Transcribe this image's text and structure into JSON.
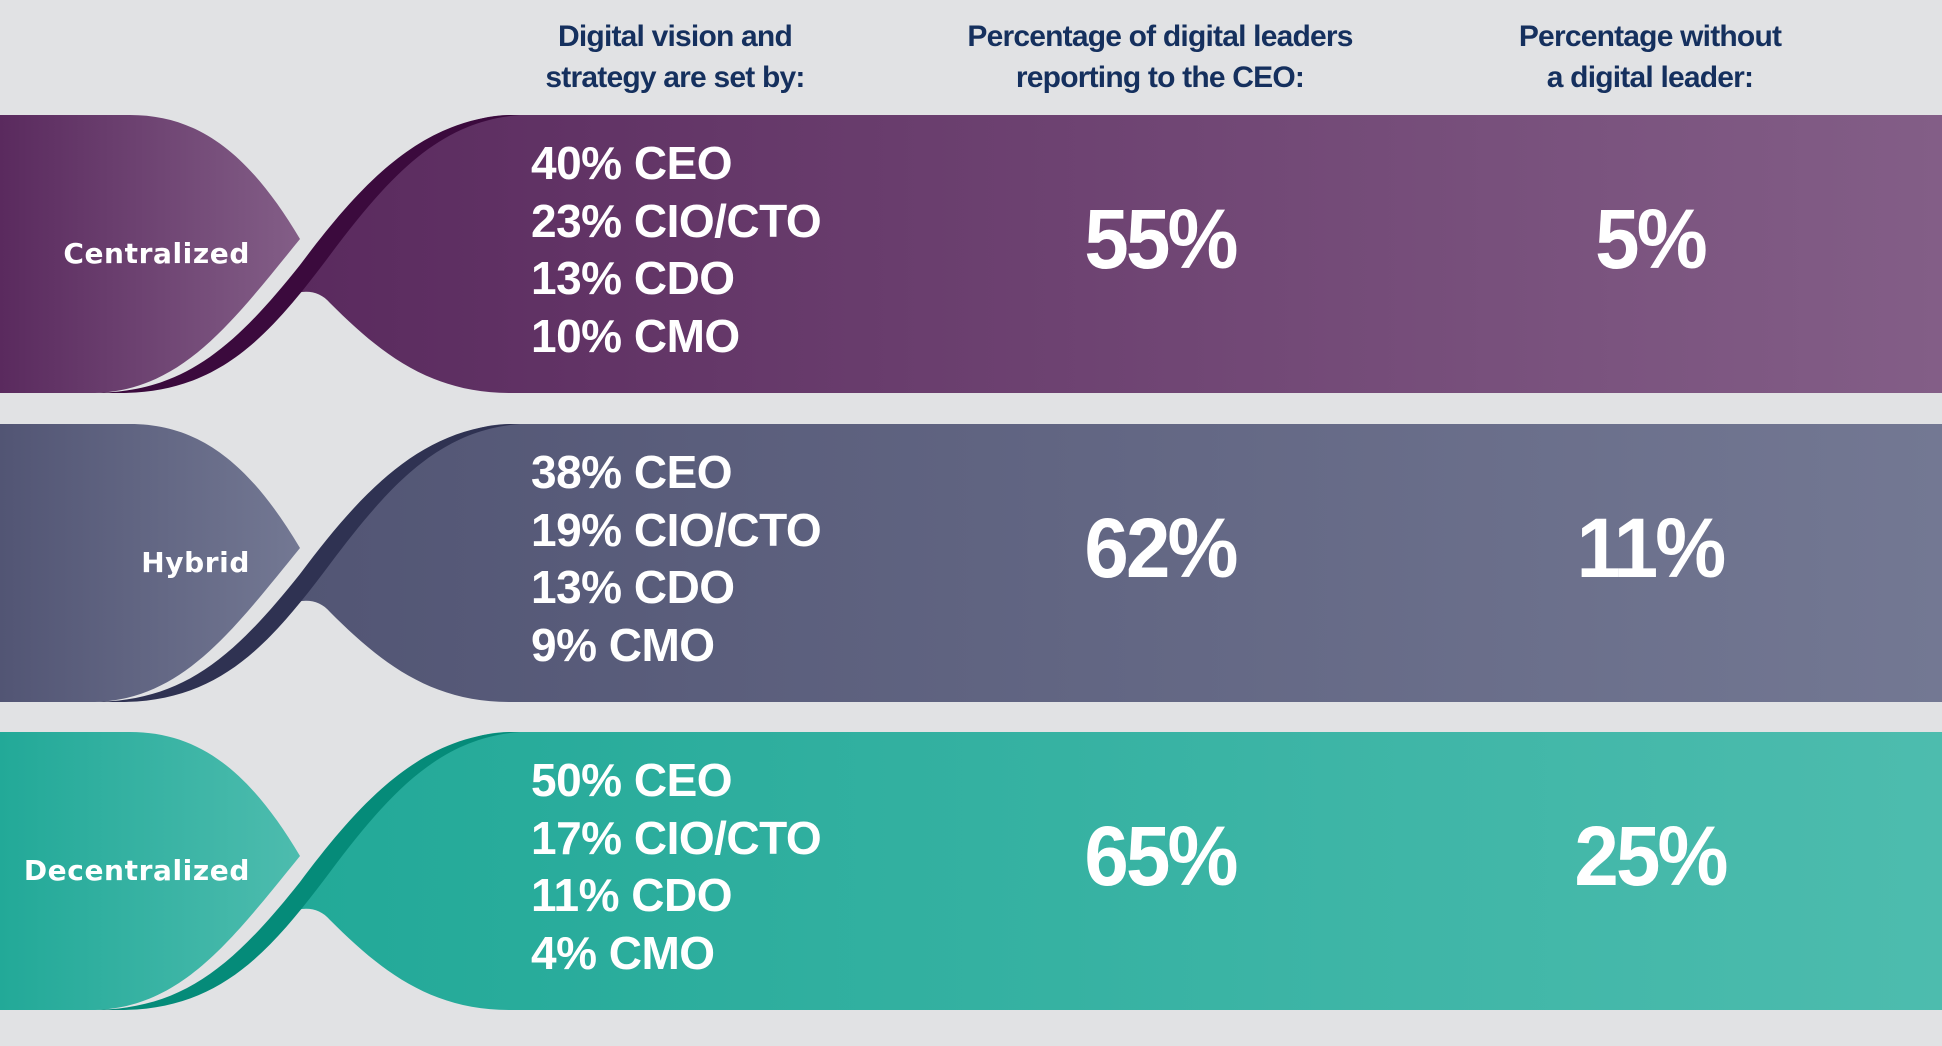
{
  "headers": {
    "col1": [
      "Digital vision and",
      "strategy are set by:"
    ],
    "col2": [
      "Percentage of digital leaders",
      "reporting to the CEO:"
    ],
    "col3": [
      "Percentage without",
      "a digital leader:"
    ]
  },
  "rows": [
    {
      "label": "Centralized",
      "roles": [
        "40% CEO",
        "23% CIO/CTO",
        "13% CDO",
        "10% CMO"
      ],
      "ceo_reporting": "55%",
      "without_leader": "5%",
      "colors": {
        "dark": "#5a2a5e",
        "mid": "#6d3f72",
        "light": "#835e87",
        "ribbon": "#3b0a3d"
      }
    },
    {
      "label": "Hybrid",
      "roles": [
        "38% CEO",
        "19% CIO/CTO",
        "13% CDO",
        "9% CMO"
      ],
      "ceo_reporting": "62%",
      "without_leader": "11%",
      "colors": {
        "dark": "#525574",
        "mid": "#5f6482",
        "light": "#737893",
        "ribbon": "#2f3252"
      }
    },
    {
      "label": "Decentralized",
      "roles": [
        "50% CEO",
        "17% CIO/CTO",
        "11% CDO",
        "4% CMO"
      ],
      "ceo_reporting": "65%",
      "without_leader": "25%",
      "colors": {
        "dark": "#22a998",
        "mid": "#36b3a4",
        "light": "#4dbcae",
        "ribbon": "#058b79"
      }
    }
  ]
}
